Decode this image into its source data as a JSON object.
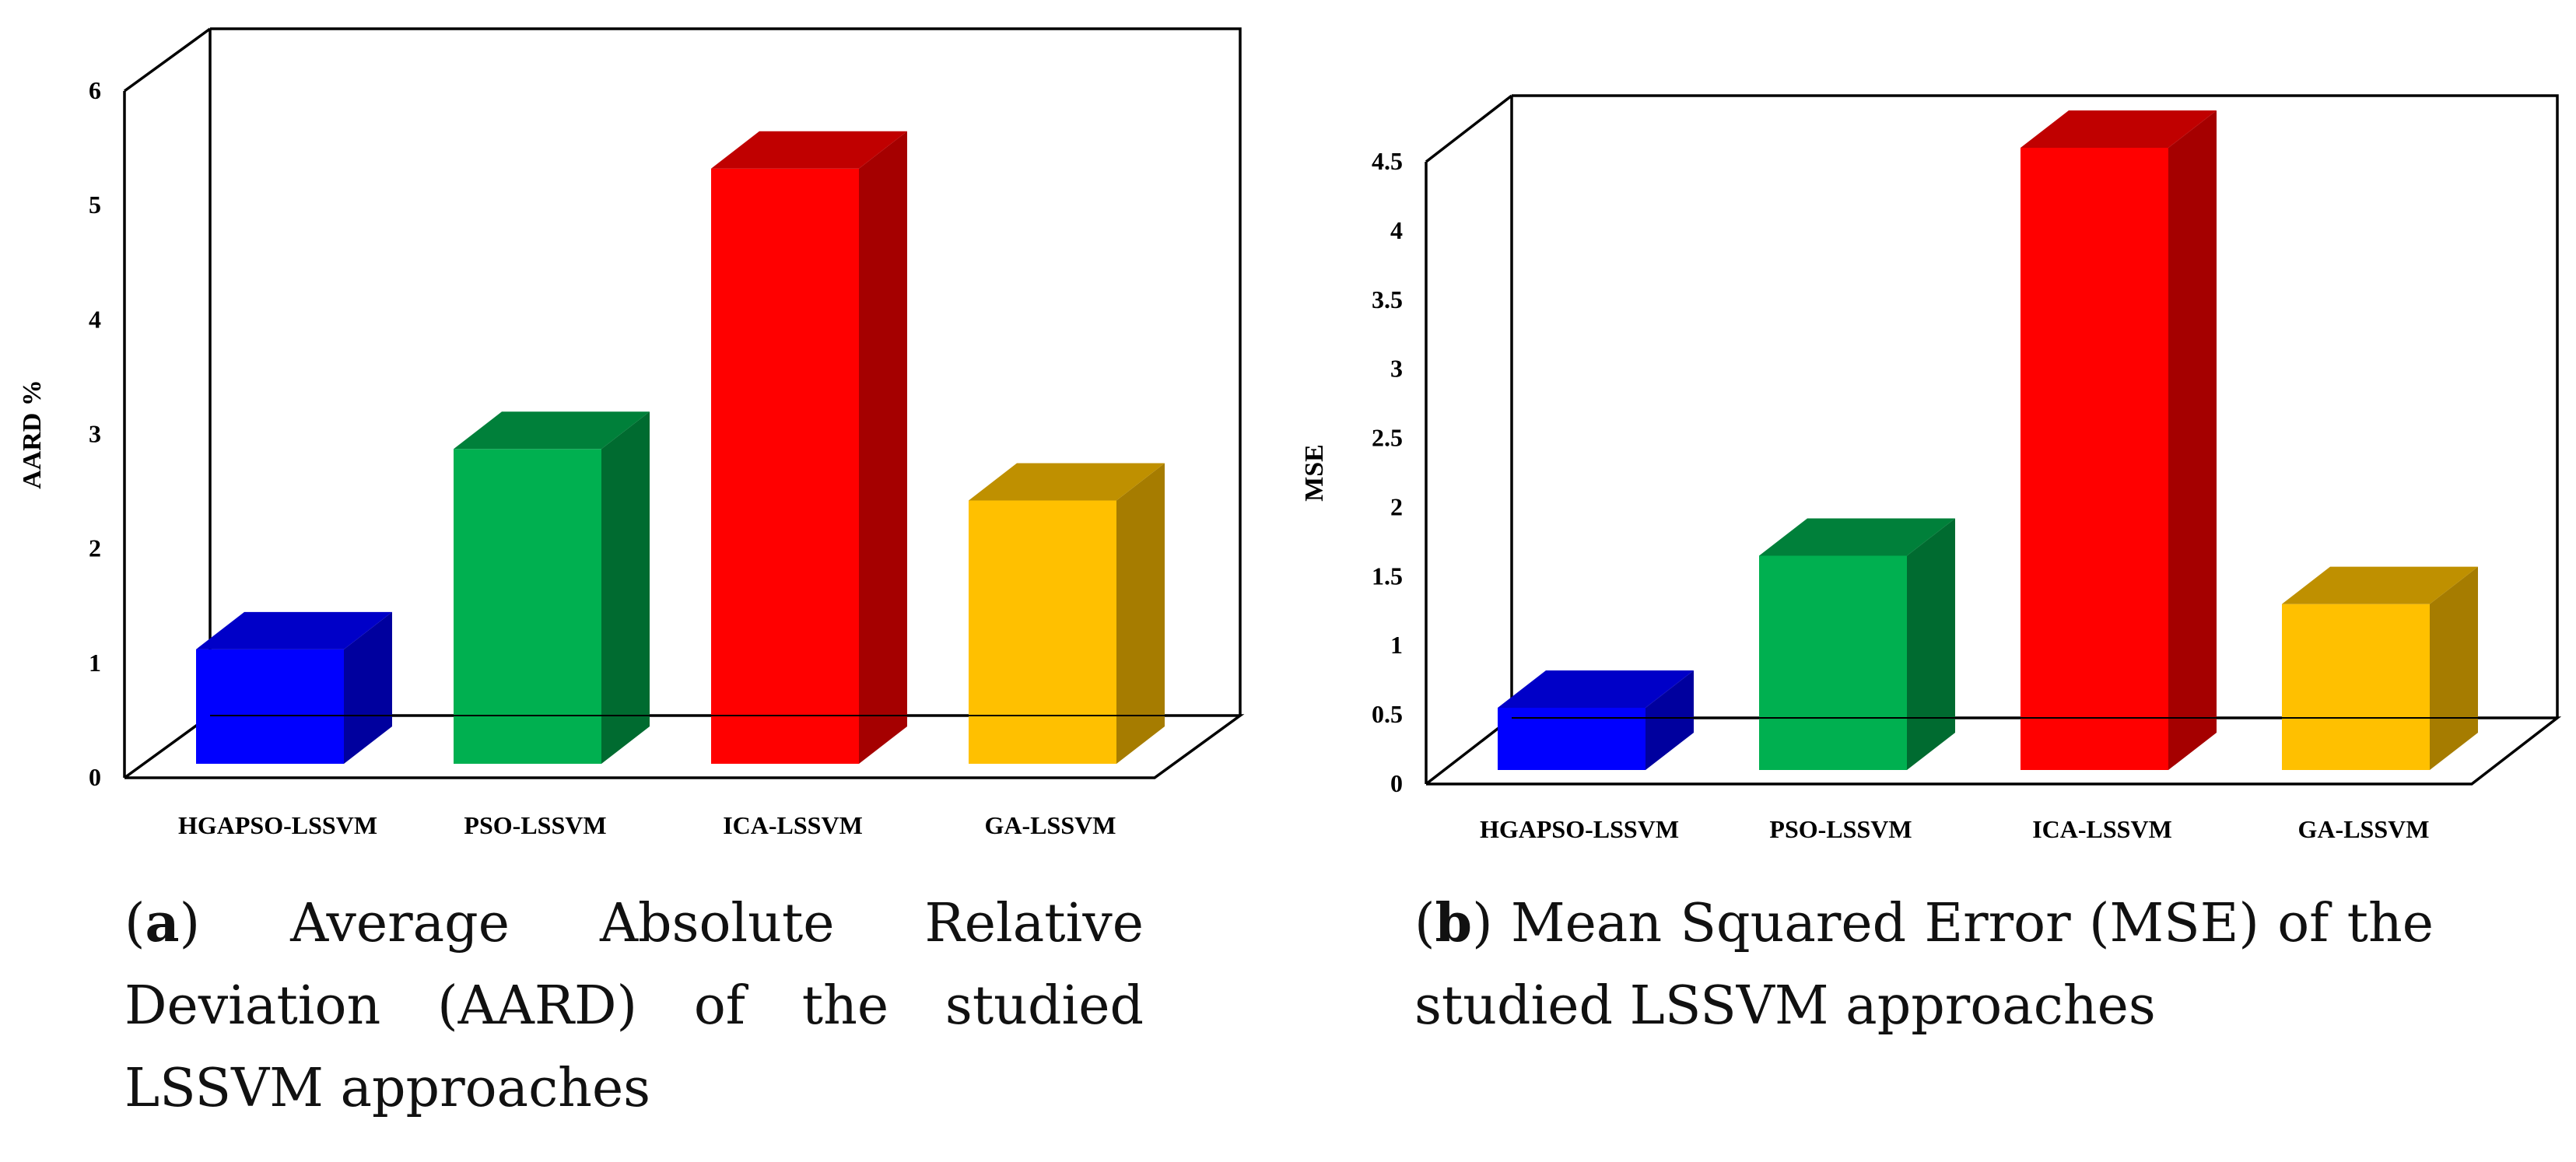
{
  "chart_data": [
    {
      "type": "bar",
      "style": "3d",
      "categories": [
        "HGAPSO-LSSVM",
        "PSO-LSSVM",
        "ICA-LSSVM",
        "GA-LSSVM"
      ],
      "values": [
        1.0,
        2.75,
        5.2,
        2.3
      ],
      "ylabel": "AARD %",
      "xlabel": "",
      "ylim": [
        0,
        6
      ],
      "yticks": [
        0,
        1,
        2,
        3,
        4,
        5,
        6
      ],
      "ytick_labels": [
        "0",
        "1",
        "2",
        "3",
        "4",
        "5",
        "6"
      ],
      "colors": [
        "#0000ff",
        "#00b050",
        "#ff0000",
        "#ffc000"
      ],
      "side_colors": [
        "#00009e",
        "#006b30",
        "#a50000",
        "#a67c00"
      ],
      "top_colors": [
        "#0000c8",
        "#00803a",
        "#c00000",
        "#bf9000"
      ]
    },
    {
      "type": "bar",
      "style": "3d",
      "categories": [
        "HGAPSO-LSSVM",
        "PSO-LSSVM",
        "ICA-LSSVM",
        "GA-LSSVM"
      ],
      "values": [
        0.45,
        1.55,
        4.5,
        1.2
      ],
      "ylabel": "MSE",
      "xlabel": "",
      "ylim": [
        0,
        4.5
      ],
      "yticks": [
        0,
        0.5,
        1,
        1.5,
        2,
        2.5,
        3,
        3.5,
        4,
        4.5
      ],
      "ytick_labels": [
        "0",
        "0.5",
        "1",
        "1.5",
        "2",
        "2.5",
        "3",
        "3.5",
        "4",
        "4.5"
      ],
      "colors": [
        "#0000ff",
        "#00b050",
        "#ff0000",
        "#ffc000"
      ],
      "side_colors": [
        "#00009e",
        "#006b30",
        "#a50000",
        "#a67c00"
      ],
      "top_colors": [
        "#0000c8",
        "#00803a",
        "#c00000",
        "#bf9000"
      ]
    }
  ],
  "captions": {
    "a_label": "a",
    "a_text": "Average Absolute Relative Deviation (AARD) of the studied LSSVM approaches",
    "b_label": "b",
    "b_text": "Mean Squared Error (MSE) of the studied LSSVM approaches"
  }
}
